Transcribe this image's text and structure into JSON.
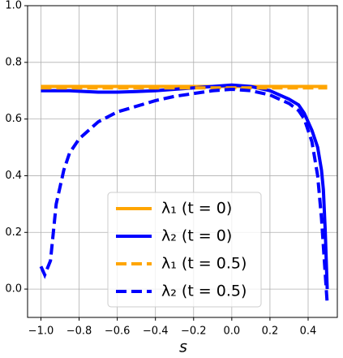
{
  "chart_data": {
    "type": "line",
    "xlabel": "s",
    "x": [
      -1,
      -0.98,
      -0.95,
      -0.92,
      -0.88,
      -0.85,
      -0.8,
      -0.7,
      -0.6,
      -0.5,
      -0.4,
      -0.3,
      -0.2,
      -0.1,
      0,
      0.1,
      0.2,
      0.3,
      0.35,
      0.38,
      0.42,
      0.45,
      0.47,
      0.48,
      0.49,
      0.5
    ],
    "series": [
      {
        "name": "λ₁ (t = 0)",
        "color": "#ffa500",
        "dashed": false,
        "values": [
          0.715,
          0.715,
          0.715,
          0.715,
          0.715,
          0.715,
          0.715,
          0.715,
          0.715,
          0.715,
          0.715,
          0.715,
          0.715,
          0.715,
          0.715,
          0.715,
          0.715,
          0.715,
          0.715,
          0.715,
          0.715,
          0.715,
          0.715,
          0.715,
          0.715,
          0.715
        ]
      },
      {
        "name": "λ₂ (t = 0)",
        "color": "#0000ff",
        "dashed": false,
        "values": [
          0.7,
          0.7,
          0.7,
          0.7,
          0.7,
          0.7,
          0.698,
          0.695,
          0.695,
          0.697,
          0.7,
          0.705,
          0.71,
          0.715,
          0.72,
          0.715,
          0.7,
          0.67,
          0.65,
          0.62,
          0.56,
          0.5,
          0.42,
          0.35,
          0.2,
          0.0
        ]
      },
      {
        "name": "λ₁ (t = 0.5)",
        "color": "#ffa500",
        "dashed": true,
        "values": [
          0.71,
          0.71,
          0.71,
          0.71,
          0.71,
          0.71,
          0.71,
          0.71,
          0.71,
          0.71,
          0.71,
          0.71,
          0.71,
          0.71,
          0.71,
          0.71,
          0.71,
          0.71,
          0.71,
          0.71,
          0.71,
          0.71,
          0.71,
          0.71,
          0.71,
          0.71
        ]
      },
      {
        "name": "λ₂ (t = 0.5)",
        "color": "#0000ff",
        "dashed": true,
        "values": [
          0.08,
          0.05,
          0.1,
          0.3,
          0.42,
          0.48,
          0.53,
          0.59,
          0.625,
          0.645,
          0.665,
          0.68,
          0.69,
          0.7,
          0.705,
          0.7,
          0.685,
          0.655,
          0.63,
          0.6,
          0.52,
          0.4,
          0.25,
          0.15,
          0.05,
          -0.05
        ]
      }
    ],
    "xlim": [
      -1.07,
      0.553
    ],
    "ylim": [
      -0.1,
      1.0
    ],
    "xticks": [
      {
        "value": -1.0,
        "label": "−1.0"
      },
      {
        "value": -0.8,
        "label": "−0.8"
      },
      {
        "value": -0.6,
        "label": "−0.6"
      },
      {
        "value": -0.4,
        "label": "−0.4"
      },
      {
        "value": -0.2,
        "label": "−0.2"
      },
      {
        "value": 0,
        "label": "0.0"
      },
      {
        "value": 0.2,
        "label": "0.2"
      },
      {
        "value": 0.4,
        "label": "0.4"
      }
    ],
    "yticks": [
      {
        "value": 0,
        "label": "0.0"
      },
      {
        "value": 0.2,
        "label": "0.2"
      },
      {
        "value": 0.4,
        "label": "0.4"
      },
      {
        "value": 0.6,
        "label": "0.6"
      },
      {
        "value": 0.8,
        "label": "0.8"
      },
      {
        "value": 1.0,
        "label": "1.0"
      }
    ],
    "grid": true,
    "legend": "lower center"
  }
}
